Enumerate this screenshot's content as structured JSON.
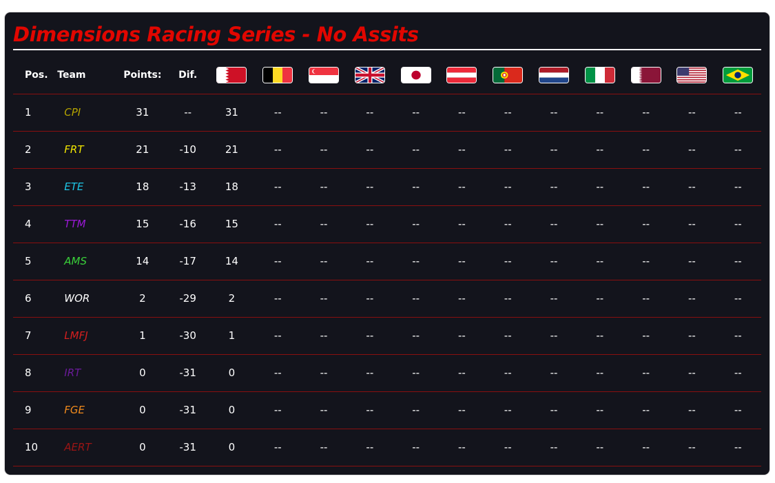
{
  "title": "Dimensions Racing Series - No Assits",
  "columns": {
    "pos": "Pos.",
    "team": "Team",
    "points": "Points:",
    "dif": "Dif."
  },
  "races": [
    {
      "flag": "bahrain-flag-icon"
    },
    {
      "flag": "belgium-flag-icon"
    },
    {
      "flag": "singapore-flag-icon"
    },
    {
      "flag": "uk-flag-icon"
    },
    {
      "flag": "japan-flag-icon"
    },
    {
      "flag": "austria-flag-icon"
    },
    {
      "flag": "portugal-flag-icon"
    },
    {
      "flag": "netherlands-flag-icon"
    },
    {
      "flag": "italy-flag-icon"
    },
    {
      "flag": "qatar-flag-icon"
    },
    {
      "flag": "usa-flag-icon"
    },
    {
      "flag": "brazil-flag-icon"
    }
  ],
  "rows": [
    {
      "pos": "1",
      "team": "CPI",
      "color": "#b5a400",
      "points": "31",
      "dif": "--",
      "results": [
        "31",
        "--",
        "--",
        "--",
        "--",
        "--",
        "--",
        "--",
        "--",
        "--",
        "--",
        "--"
      ]
    },
    {
      "pos": "2",
      "team": "FRT",
      "color": "#f2e600",
      "points": "21",
      "dif": "-10",
      "results": [
        "21",
        "--",
        "--",
        "--",
        "--",
        "--",
        "--",
        "--",
        "--",
        "--",
        "--",
        "--"
      ]
    },
    {
      "pos": "3",
      "team": "ETE",
      "color": "#1ec6e6",
      "points": "18",
      "dif": "-13",
      "results": [
        "18",
        "--",
        "--",
        "--",
        "--",
        "--",
        "--",
        "--",
        "--",
        "--",
        "--",
        "--"
      ]
    },
    {
      "pos": "4",
      "team": "TTM",
      "color": "#9b19d6",
      "points": "15",
      "dif": "-16",
      "results": [
        "15",
        "--",
        "--",
        "--",
        "--",
        "--",
        "--",
        "--",
        "--",
        "--",
        "--",
        "--"
      ]
    },
    {
      "pos": "5",
      "team": "AMS",
      "color": "#3ad13a",
      "points": "14",
      "dif": "-17",
      "results": [
        "14",
        "--",
        "--",
        "--",
        "--",
        "--",
        "--",
        "--",
        "--",
        "--",
        "--",
        "--"
      ]
    },
    {
      "pos": "6",
      "team": "WOR",
      "color": "#ffffff",
      "points": "2",
      "dif": "-29",
      "results": [
        "2",
        "--",
        "--",
        "--",
        "--",
        "--",
        "--",
        "--",
        "--",
        "--",
        "--",
        "--"
      ]
    },
    {
      "pos": "7",
      "team": "LMFJ",
      "color": "#d41f1f",
      "points": "1",
      "dif": "-30",
      "results": [
        "1",
        "--",
        "--",
        "--",
        "--",
        "--",
        "--",
        "--",
        "--",
        "--",
        "--",
        "--"
      ]
    },
    {
      "pos": "8",
      "team": "IRT",
      "color": "#6a1b9a",
      "points": "0",
      "dif": "-31",
      "results": [
        "0",
        "--",
        "--",
        "--",
        "--",
        "--",
        "--",
        "--",
        "--",
        "--",
        "--",
        "--"
      ]
    },
    {
      "pos": "9",
      "team": "FGE",
      "color": "#f08a1c",
      "points": "0",
      "dif": "-31",
      "results": [
        "0",
        "--",
        "--",
        "--",
        "--",
        "--",
        "--",
        "--",
        "--",
        "--",
        "--",
        "--"
      ]
    },
    {
      "pos": "10",
      "team": "AERT",
      "color": "#9c1414",
      "points": "0",
      "dif": "-31",
      "results": [
        "0",
        "--",
        "--",
        "--",
        "--",
        "--",
        "--",
        "--",
        "--",
        "--",
        "--",
        "--"
      ]
    }
  ]
}
